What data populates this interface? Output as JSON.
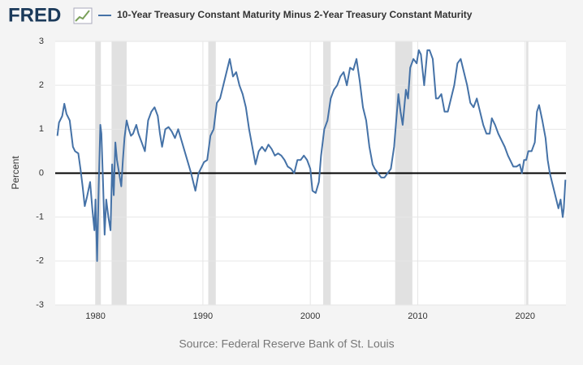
{
  "brand": "FRED",
  "source": "Source: Federal Reserve Bank of St. Louis",
  "chart_data": {
    "type": "line",
    "title": "10-Year Treasury Constant Maturity Minus 2-Year Treasury Constant Maturity",
    "y_label": "Percent",
    "xlim": [
      1976.25,
      2023.8
    ],
    "ylim": [
      -3,
      3
    ],
    "xticks": [
      1980,
      1990,
      2000,
      2010,
      2020
    ],
    "yticks": [
      -3,
      -2,
      -1,
      0,
      1,
      2,
      3
    ],
    "grid": true,
    "recession_color": "#e1e1e1",
    "recessions": [
      [
        1980.0,
        1980.5
      ],
      [
        1981.5,
        1982.9
      ],
      [
        1990.5,
        1991.2
      ],
      [
        2001.2,
        2001.9
      ],
      [
        2007.9,
        2009.5
      ],
      [
        2020.1,
        2020.3
      ]
    ],
    "series": [
      {
        "name": "10-Year Treasury Constant Maturity Minus 2-Year Treasury Constant Maturity",
        "color": "#4572a7",
        "x": [
          1976.45,
          1976.6,
          1976.9,
          1977.1,
          1977.3,
          1977.6,
          1977.9,
          1978.1,
          1978.4,
          1978.6,
          1978.8,
          1979.0,
          1979.2,
          1979.5,
          1979.7,
          1979.9,
          1980.0,
          1980.15,
          1980.3,
          1980.45,
          1980.55,
          1980.7,
          1980.85,
          1981.0,
          1981.2,
          1981.4,
          1981.55,
          1981.7,
          1981.85,
          1982.0,
          1982.2,
          1982.4,
          1982.55,
          1982.7,
          1982.9,
          1983.1,
          1983.3,
          1983.5,
          1983.8,
          1984.0,
          1984.3,
          1984.6,
          1984.9,
          1985.2,
          1985.5,
          1985.8,
          1986.0,
          1986.2,
          1986.5,
          1986.8,
          1987.1,
          1987.4,
          1987.7,
          1988.0,
          1988.3,
          1988.6,
          1988.9,
          1989.1,
          1989.3,
          1989.6,
          1989.9,
          1990.1,
          1990.4,
          1990.7,
          1991.0,
          1991.3,
          1991.6,
          1991.9,
          1992.2,
          1992.5,
          1992.8,
          1993.1,
          1993.4,
          1993.7,
          1994.0,
          1994.3,
          1994.6,
          1994.9,
          1995.2,
          1995.5,
          1995.8,
          1996.1,
          1996.4,
          1996.7,
          1997.0,
          1997.3,
          1997.6,
          1997.9,
          1998.2,
          1998.5,
          1998.8,
          1999.1,
          1999.4,
          1999.7,
          2000.0,
          2000.2,
          2000.5,
          2000.8,
          2001.0,
          2001.3,
          2001.6,
          2001.9,
          2002.2,
          2002.5,
          2002.8,
          2003.1,
          2003.4,
          2003.7,
          2004.0,
          2004.3,
          2004.6,
          2004.9,
          2005.2,
          2005.5,
          2005.8,
          2006.0,
          2006.3,
          2006.6,
          2006.9,
          2007.2,
          2007.5,
          2007.8,
          2008.0,
          2008.2,
          2008.4,
          2008.6,
          2008.9,
          2009.1,
          2009.3,
          2009.6,
          2009.9,
          2010.1,
          2010.3,
          2010.6,
          2010.9,
          2011.1,
          2011.4,
          2011.7,
          2011.9,
          2012.2,
          2012.5,
          2012.8,
          2013.1,
          2013.4,
          2013.7,
          2014.0,
          2014.3,
          2014.6,
          2014.9,
          2015.2,
          2015.5,
          2015.8,
          2016.1,
          2016.4,
          2016.7,
          2016.9,
          2017.2,
          2017.5,
          2017.8,
          2018.1,
          2018.4,
          2018.7,
          2018.9,
          2019.2,
          2019.5,
          2019.7,
          2019.9,
          2020.1,
          2020.3,
          2020.6,
          2020.9,
          2021.1,
          2021.3,
          2021.6,
          2021.9,
          2022.1,
          2022.3,
          2022.5,
          2022.7,
          2022.9,
          2023.1,
          2023.3,
          2023.5,
          2023.6,
          2023.75
        ],
        "values": [
          0.85,
          1.15,
          1.3,
          1.58,
          1.35,
          1.2,
          0.6,
          0.5,
          0.45,
          0.1,
          -0.3,
          -0.75,
          -0.55,
          -0.2,
          -0.8,
          -1.3,
          -0.6,
          -2.0,
          -0.3,
          1.1,
          0.9,
          -0.2,
          -1.4,
          -0.6,
          -1.0,
          -1.3,
          0.2,
          -0.5,
          0.7,
          0.3,
          0.0,
          -0.3,
          0.3,
          0.8,
          1.2,
          1.0,
          0.85,
          0.9,
          1.1,
          0.9,
          0.7,
          0.5,
          1.2,
          1.4,
          1.5,
          1.3,
          0.9,
          0.6,
          1.0,
          1.05,
          0.95,
          0.8,
          1.0,
          0.75,
          0.5,
          0.25,
          0.0,
          -0.2,
          -0.4,
          0.0,
          0.15,
          0.25,
          0.3,
          0.85,
          1.0,
          1.6,
          1.7,
          2.0,
          2.3,
          2.6,
          2.2,
          2.3,
          2.0,
          1.8,
          1.5,
          1.0,
          0.6,
          0.2,
          0.5,
          0.6,
          0.5,
          0.65,
          0.55,
          0.4,
          0.45,
          0.4,
          0.3,
          0.15,
          0.1,
          0.0,
          0.3,
          0.3,
          0.4,
          0.3,
          0.1,
          -0.4,
          -0.45,
          -0.2,
          0.4,
          1.0,
          1.2,
          1.7,
          1.9,
          2.0,
          2.2,
          2.3,
          2.0,
          2.4,
          2.35,
          2.6,
          2.1,
          1.5,
          1.2,
          0.6,
          0.2,
          0.1,
          0.0,
          -0.1,
          -0.1,
          0.0,
          0.1,
          0.6,
          1.2,
          1.8,
          1.4,
          1.1,
          1.9,
          1.7,
          2.4,
          2.6,
          2.5,
          2.8,
          2.7,
          2.0,
          2.8,
          2.8,
          2.6,
          1.7,
          1.7,
          1.8,
          1.4,
          1.4,
          1.7,
          2.0,
          2.5,
          2.6,
          2.3,
          2.0,
          1.6,
          1.5,
          1.7,
          1.4,
          1.1,
          0.9,
          0.9,
          1.25,
          1.1,
          0.9,
          0.75,
          0.6,
          0.4,
          0.25,
          0.15,
          0.15,
          0.2,
          0.0,
          0.3,
          0.3,
          0.5,
          0.5,
          0.7,
          1.4,
          1.55,
          1.2,
          0.8,
          0.3,
          0.0,
          -0.2,
          -0.4,
          -0.6,
          -0.8,
          -0.6,
          -1.0,
          -0.8,
          -0.15
        ]
      }
    ]
  }
}
